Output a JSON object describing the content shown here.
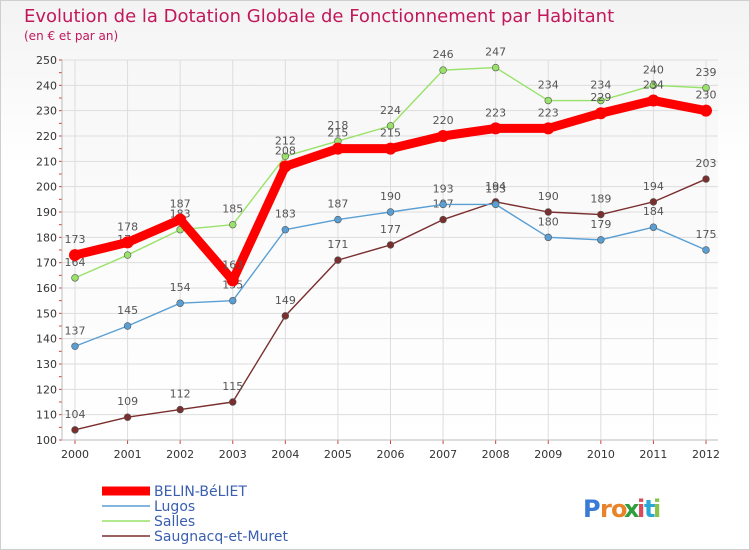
{
  "chart_data": {
    "type": "line",
    "title": "Evolution de la Dotation Globale de Fonctionnement par Habitant",
    "subtitle": "(en € et par an)",
    "x": [
      "2000",
      "2001",
      "2002",
      "2003",
      "2004",
      "2005",
      "2006",
      "2007",
      "2008",
      "2009",
      "2010",
      "2011",
      "2012"
    ],
    "ylim": [
      100,
      250
    ],
    "yticks": [
      100,
      110,
      120,
      130,
      140,
      150,
      160,
      170,
      180,
      190,
      200,
      210,
      220,
      230,
      240,
      250
    ],
    "grid": true,
    "legend_position": "bottom-left",
    "series": [
      {
        "name": "BELIN-BéLIET",
        "color": "#ff0000",
        "values": [
          173,
          178,
          187,
          163,
          208,
          215,
          215,
          220,
          223,
          223,
          229,
          234,
          230
        ]
      },
      {
        "name": "Lugos",
        "color": "#5a9fd4",
        "values": [
          137,
          145,
          154,
          155,
          183,
          187,
          190,
          193,
          193,
          180,
          179,
          184,
          175
        ]
      },
      {
        "name": "Salles",
        "color": "#99e26a",
        "values": [
          164,
          173,
          183,
          185,
          212,
          218,
          224,
          246,
          247,
          234,
          234,
          240,
          239
        ]
      },
      {
        "name": "Saugnacq-et-Muret",
        "color": "#7a2e2e",
        "values": [
          104,
          109,
          112,
          115,
          149,
          171,
          177,
          187,
          194,
          190,
          189,
          194,
          203
        ]
      }
    ]
  },
  "brand": {
    "logo_text": "Proxiti"
  }
}
